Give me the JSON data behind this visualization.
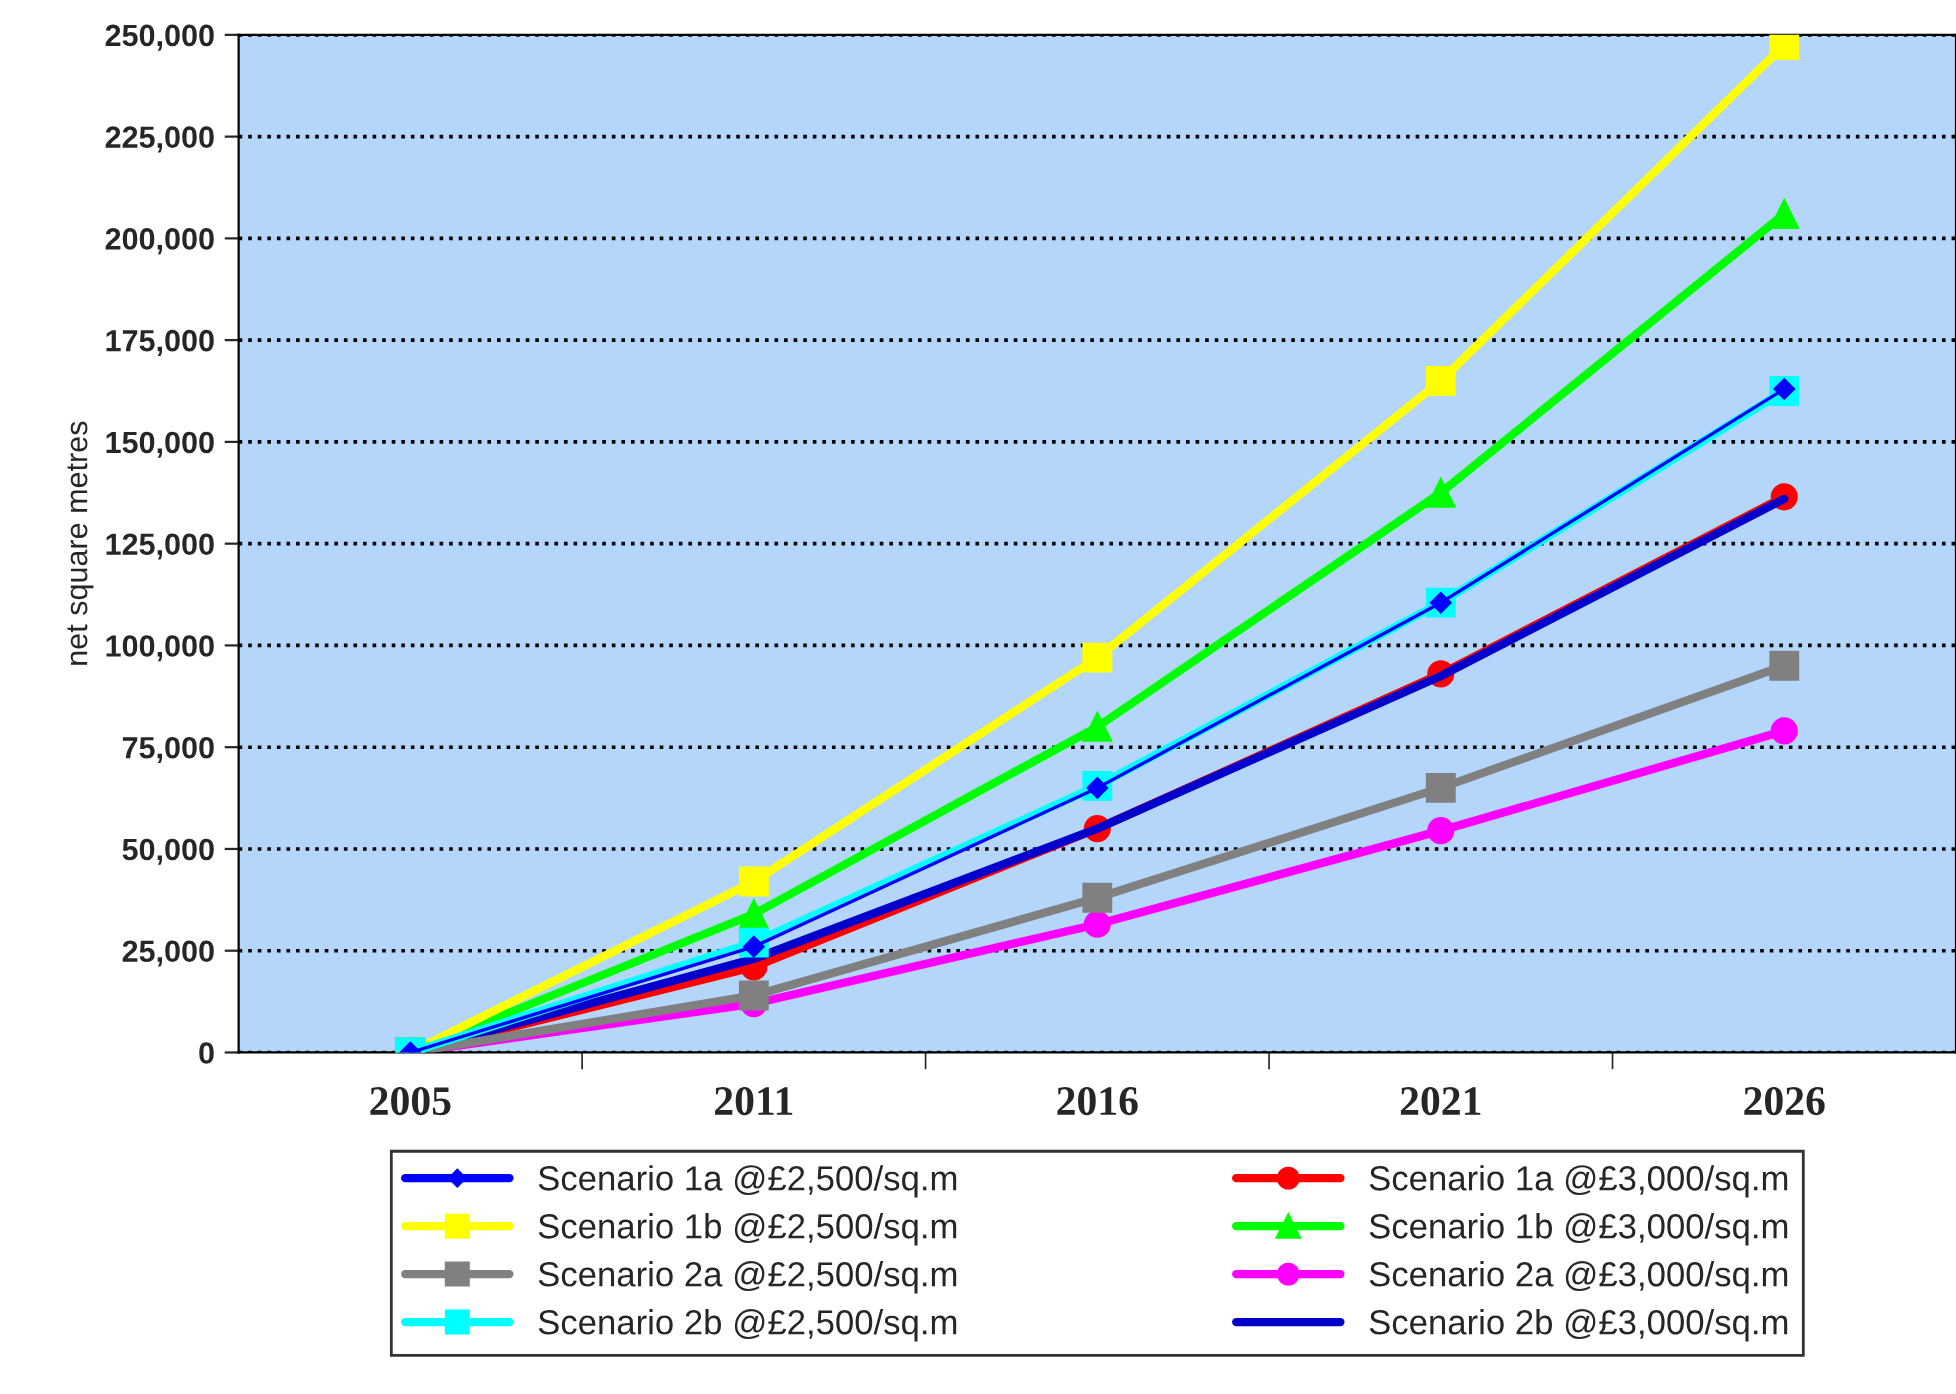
{
  "chart_data": {
    "type": "line",
    "ylabel": "net square metres",
    "categories": [
      "2005",
      "2011",
      "2016",
      "2021",
      "2026"
    ],
    "ylim": [
      0,
      250000
    ],
    "yticks": [
      {
        "value": 0,
        "label": "0"
      },
      {
        "value": 25000,
        "label": "25,000"
      },
      {
        "value": 50000,
        "label": "50,000"
      },
      {
        "value": 75000,
        "label": "75,000"
      },
      {
        "value": 100000,
        "label": "100,000"
      },
      {
        "value": 125000,
        "label": "125,000"
      },
      {
        "value": 150000,
        "label": "150,000"
      },
      {
        "value": 175000,
        "label": "175,000"
      },
      {
        "value": 200000,
        "label": "200,000"
      },
      {
        "value": 225000,
        "label": "225,000"
      },
      {
        "value": 250000,
        "label": "250,000"
      }
    ],
    "grid": "y",
    "legend": "bottom",
    "series": [
      {
        "name": "Scenario 1a @£2,500/sq.m",
        "color": "#0000ff",
        "marker": "diamond",
        "values": [
          0,
          26000,
          65000,
          110500,
          163000
        ]
      },
      {
        "name": "Scenario 1a @£3,000/sq.m",
        "color": "#ff0000",
        "marker": "circle",
        "values": [
          0,
          21000,
          55000,
          93000,
          136500
        ]
      },
      {
        "name": "Scenario 1b @£2,500/sq.m",
        "color": "#ffff00",
        "marker": "square",
        "values": [
          0,
          42000,
          97000,
          165000,
          247500
        ]
      },
      {
        "name": "Scenario 1b @£3,000/sq.m",
        "color": "#00ff00",
        "marker": "triangle",
        "values": [
          0,
          34000,
          80000,
          137500,
          206000
        ]
      },
      {
        "name": "Scenario 2a @£2,500/sq.m",
        "color": "#808080",
        "marker": "square",
        "values": [
          0,
          14000,
          38000,
          65000,
          95000
        ]
      },
      {
        "name": "Scenario 2a @£3,000/sq.m",
        "color": "#ff00ff",
        "marker": "circle",
        "values": [
          0,
          12000,
          31500,
          54500,
          79000
        ]
      },
      {
        "name": "Scenario 2b @£2,500/sq.m",
        "color": "#00ffff",
        "marker": "square",
        "values": [
          0,
          27000,
          65500,
          110500,
          162500
        ]
      },
      {
        "name": "Scenario 2b @£3,000/sq.m",
        "color": "#0000cc",
        "marker": "none",
        "values": [
          0,
          23000,
          55000,
          92500,
          136000
        ]
      }
    ]
  }
}
